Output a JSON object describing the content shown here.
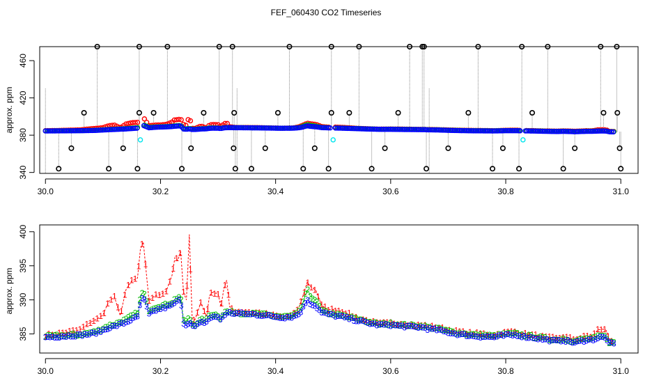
{
  "title": "FEF_060430  CO2 Timeseries",
  "chart_data": [
    {
      "type": "scatter",
      "ylabel": "approx. ppm",
      "xlabel": "",
      "xlim": [
        29.99,
        31.03
      ],
      "ylim": [
        339,
        475
      ],
      "x_ticks": [
        "30.0",
        "30.2",
        "30.4",
        "30.6",
        "30.8",
        "31.0"
      ],
      "x_tick_values": [
        30.0,
        30.2,
        30.4,
        30.6,
        30.8,
        31.0
      ],
      "y_ticks": [
        "340",
        "380",
        "420",
        "460"
      ],
      "y_tick_values": [
        340,
        380,
        420,
        460
      ],
      "grid": false,
      "series_colors": {
        "outlier": "#000000",
        "s1": "#ff0000",
        "s2": "#00bb00",
        "s3": "#0000ff",
        "cyan": "#00e5ee",
        "vline": "#888888"
      },
      "gap_points": [
        30.165,
        30.5,
        30.83
      ],
      "outliers_high_x": [
        30.09,
        30.163,
        30.212,
        30.302,
        30.325,
        30.424,
        30.497,
        30.545,
        30.633,
        30.655,
        30.658,
        30.752,
        30.828,
        30.873,
        30.965,
        30.993
      ],
      "outliers_high_y": 475,
      "outliers_low_x": [
        30.023,
        30.11,
        30.16,
        30.237,
        30.33,
        30.358,
        30.448,
        30.492,
        30.567,
        30.662,
        30.777,
        30.823,
        30.9,
        31.0
      ],
      "outliers_low_y": 344,
      "outliers_mid_x": [
        30.067,
        30.163,
        30.188,
        30.275,
        30.328,
        30.404,
        30.497,
        30.528,
        30.613,
        30.735,
        30.846,
        30.97,
        30.994
      ],
      "outliers_mid_y": 404,
      "outliers_365_x": [
        30.045,
        30.135,
        30.253,
        30.327,
        30.382,
        30.468,
        30.59,
        30.7,
        30.795,
        30.92,
        30.998
      ],
      "outliers_365_y": 366
    },
    {
      "type": "line",
      "ylabel": "approx. ppm",
      "xlabel": "",
      "xlim": [
        29.99,
        31.03
      ],
      "ylim": [
        382.2,
        401
      ],
      "x_ticks": [
        "30.0",
        "30.2",
        "30.4",
        "30.6",
        "30.8",
        "31.0"
      ],
      "x_tick_values": [
        30.0,
        30.2,
        30.4,
        30.6,
        30.8,
        31.0
      ],
      "y_ticks": [
        "385",
        "390",
        "395",
        "400"
      ],
      "y_tick_values": [
        385,
        390,
        395,
        400
      ],
      "grid": false,
      "marker_labels": [
        "1",
        "2",
        "3"
      ],
      "series": [
        {
          "marker": "1",
          "color": "#ff0000"
        },
        {
          "marker": "2",
          "color": "#00bb00"
        },
        {
          "marker": "3",
          "color": "#0000ff"
        }
      ],
      "x": [
        30.0,
        30.02,
        30.04,
        30.06,
        30.08,
        30.09,
        30.1,
        30.11,
        30.12,
        30.13,
        30.14,
        30.15,
        30.16,
        30.165,
        30.17,
        30.18,
        30.19,
        30.2,
        30.21,
        30.22,
        30.225,
        30.23,
        30.235,
        30.24,
        30.245,
        30.25,
        30.255,
        30.26,
        30.27,
        30.28,
        30.285,
        30.29,
        30.3,
        30.305,
        30.31,
        30.315,
        30.32,
        30.33,
        30.35,
        30.37,
        30.39,
        30.41,
        30.43,
        30.44,
        30.445,
        30.45,
        30.455,
        30.46,
        30.47,
        30.48,
        30.49,
        30.5,
        30.52,
        30.54,
        30.56,
        30.58,
        30.6,
        30.62,
        30.64,
        30.66,
        30.665,
        30.68,
        30.7,
        30.72,
        30.74,
        30.76,
        30.78,
        30.8,
        30.81,
        30.82,
        30.83,
        30.85,
        30.87,
        30.89,
        30.9,
        30.91,
        30.92,
        30.93,
        30.94,
        30.95,
        30.96,
        30.97,
        30.975,
        30.98,
        30.99
      ],
      "s1": [
        384.8,
        385.0,
        385.3,
        385.6,
        386.8,
        387.2,
        387.8,
        389.8,
        390.4,
        387.7,
        391.5,
        392.8,
        393.2,
        397.4,
        398.5,
        389.9,
        390.6,
        390.8,
        391.3,
        393.6,
        396.2,
        395.8,
        397.1,
        391.1,
        390.0,
        399.6,
        387.2,
        387.1,
        389.6,
        387.5,
        390.6,
        391.1,
        390.9,
        389.0,
        391.6,
        392.9,
        389.0,
        388.3,
        388.2,
        388.1,
        387.8,
        387.5,
        387.7,
        388.8,
        389.9,
        391.2,
        392.6,
        392.0,
        391.4,
        389.2,
        388.6,
        388.6,
        388.2,
        387.4,
        386.9,
        386.5,
        386.6,
        386.5,
        386.3,
        386.2,
        386.1,
        386.0,
        385.6,
        385.3,
        385.1,
        385.0,
        384.8,
        385.2,
        385.3,
        385.3,
        385.0,
        384.8,
        384.5,
        384.3,
        384.6,
        384.4,
        384.2,
        384.4,
        384.7,
        384.6,
        385.6,
        385.7,
        385.5,
        384.1,
        383.9
      ],
      "s2": [
        384.6,
        384.7,
        384.8,
        384.9,
        385.2,
        385.4,
        385.8,
        386.2,
        386.4,
        386.8,
        387.1,
        387.6,
        388.1,
        390.4,
        391.3,
        388.5,
        388.9,
        389.1,
        389.3,
        389.6,
        390.1,
        390.3,
        390.5,
        387.1,
        386.8,
        387.4,
        386.5,
        386.4,
        387.0,
        387.1,
        387.8,
        387.9,
        387.7,
        387.3,
        388.1,
        388.3,
        388.2,
        388.1,
        388.0,
        387.9,
        387.7,
        387.5,
        387.6,
        388.2,
        389.0,
        390.2,
        391.5,
        390.6,
        389.9,
        388.4,
        388.1,
        387.9,
        387.6,
        387.2,
        386.8,
        386.4,
        386.5,
        386.3,
        386.2,
        386.1,
        385.9,
        385.8,
        385.4,
        385.1,
        384.9,
        384.8,
        384.7,
        385.0,
        385.0,
        385.0,
        384.8,
        384.6,
        384.3,
        384.1,
        384.3,
        384.1,
        383.9,
        384.1,
        384.3,
        384.3,
        384.6,
        384.7,
        384.5,
        383.8,
        383.7
      ],
      "s3": [
        384.5,
        384.6,
        384.7,
        384.8,
        385.0,
        385.2,
        385.5,
        385.9,
        386.1,
        386.4,
        386.7,
        387.1,
        387.5,
        389.6,
        390.4,
        387.9,
        388.4,
        388.7,
        388.9,
        389.2,
        389.6,
        389.8,
        390.0,
        386.6,
        386.3,
        386.8,
        386.1,
        386.1,
        386.6,
        386.8,
        387.3,
        387.5,
        387.4,
        387.1,
        387.8,
        388.0,
        388.1,
        388.0,
        387.9,
        387.8,
        387.6,
        387.4,
        387.5,
        387.9,
        388.4,
        389.2,
        390.1,
        389.5,
        389.0,
        388.1,
        387.9,
        387.7,
        387.4,
        387.0,
        386.6,
        386.3,
        386.3,
        386.1,
        386.0,
        385.9,
        385.7,
        385.6,
        385.2,
        384.9,
        384.7,
        384.6,
        384.5,
        384.8,
        384.8,
        384.8,
        384.6,
        384.4,
        384.1,
        383.9,
        384.1,
        383.9,
        383.7,
        383.9,
        384.1,
        384.1,
        384.4,
        384.5,
        384.3,
        383.6,
        383.5
      ]
    }
  ]
}
